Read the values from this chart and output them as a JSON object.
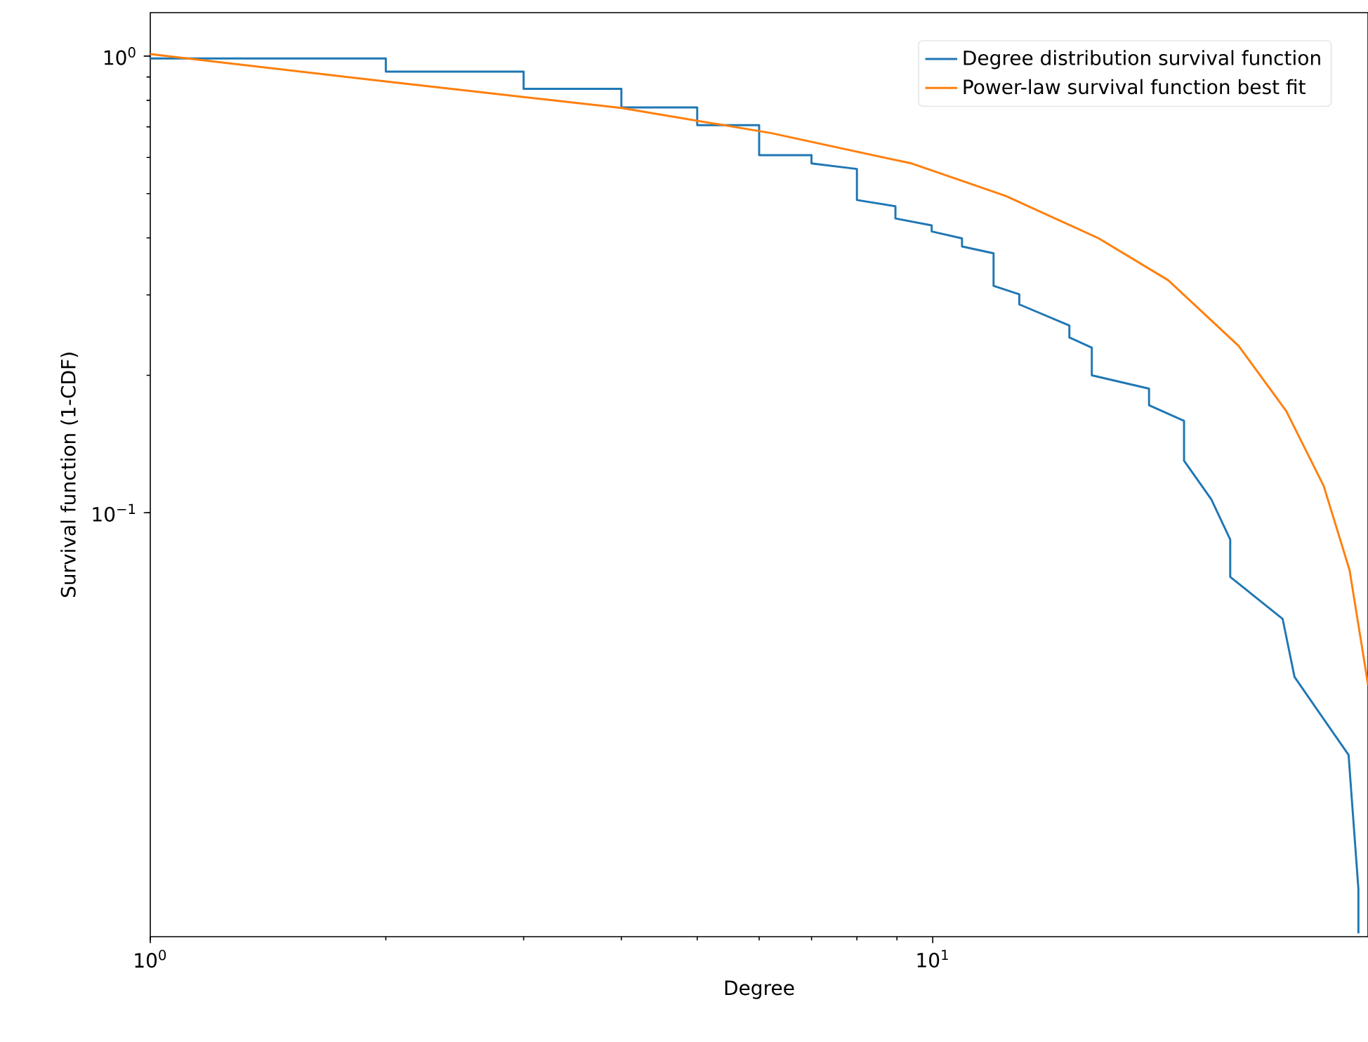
{
  "chart_data": {
    "type": "line",
    "xlabel": "Degree",
    "ylabel": "Survival function (1-CDF)",
    "log": "xy",
    "grid": false,
    "legend": "top right",
    "marker": "none",
    "line_style": "solid",
    "xlim": [
      1,
      36
    ],
    "ylim": [
      0.0118,
      1.245
    ],
    "xticks": [
      {
        "value": 1,
        "label": "10$^{0}$"
      },
      {
        "value": 10,
        "label": "10$^{1}$"
      }
    ],
    "yticks": [
      {
        "value": 0.1,
        "label": "10$^{−1}$"
      },
      {
        "value": 1,
        "label": "10$^{0}$"
      }
    ],
    "series": [
      {
        "name": "Degree distribution survival function",
        "color": "#1f77b4",
        "x": [
          1,
          2,
          2,
          3,
          3,
          4,
          4,
          5,
          5,
          6,
          6,
          7,
          7,
          8,
          8,
          8.96,
          8.96,
          9.97,
          9.97,
          10.9,
          10.9,
          11.96,
          11.96,
          12.9,
          12.9,
          14.95,
          14.95,
          15.97,
          15.97,
          18.9,
          18.9,
          20.95,
          20.95,
          22.7,
          24.0,
          24.0,
          28.0,
          29.0,
          34.0,
          35.0,
          35.0
        ],
        "values": [
          0.988,
          0.988,
          0.925,
          0.925,
          0.848,
          0.848,
          0.772,
          0.772,
          0.706,
          0.706,
          0.607,
          0.607,
          0.582,
          0.566,
          0.484,
          0.469,
          0.441,
          0.426,
          0.413,
          0.399,
          0.383,
          0.37,
          0.314,
          0.301,
          0.286,
          0.257,
          0.242,
          0.23,
          0.2,
          0.187,
          0.172,
          0.159,
          0.13,
          0.107,
          0.0874,
          0.0724,
          0.0586,
          0.0437,
          0.0295,
          0.015,
          0.012
        ]
      },
      {
        "name": "Power-law survival function best fit",
        "color": "#ff7f0e",
        "x": [
          1,
          2,
          4,
          6.22,
          9.4,
          12.4,
          16.3,
          20.0,
          24.6,
          28.3,
          31.6,
          34.1,
          35.8,
          36
        ],
        "values": [
          1.01,
          0.88,
          0.77,
          0.678,
          0.582,
          0.494,
          0.399,
          0.323,
          0.232,
          0.167,
          0.1145,
          0.0749,
          0.0447,
          0.042
        ]
      }
    ]
  }
}
